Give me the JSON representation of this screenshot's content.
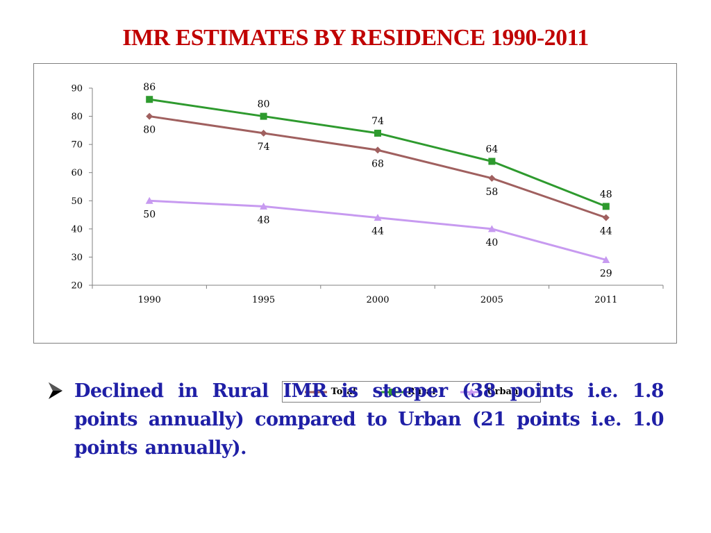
{
  "slide": {
    "title": "IMR ESTIMATES BY RESIDENCE 1990-2011",
    "bullet_text": "Declined in Rural IMR is steeper (38 points i.e. 1.8 points annually) compared to Urban (21  points i.e. 1.0 points annually).",
    "bullet_icon": "arrow-bullet-icon"
  },
  "chart_data": {
    "type": "line",
    "title": "",
    "xlabel": "",
    "ylabel": "",
    "categories": [
      "1990",
      "1995",
      "2000",
      "2005",
      "2011"
    ],
    "ylim": [
      20,
      90
    ],
    "yticks": [
      20,
      30,
      40,
      50,
      60,
      70,
      80,
      90
    ],
    "grid": false,
    "legend_position": "bottom",
    "series": [
      {
        "name": "Total",
        "values": [
          80,
          74,
          68,
          58,
          44
        ],
        "color": "#a0605f",
        "marker": "diamond",
        "label_position": "below"
      },
      {
        "name": "Rural",
        "values": [
          86,
          80,
          74,
          64,
          48
        ],
        "color": "#2e9a2e",
        "marker": "square",
        "label_position": "above"
      },
      {
        "name": "Urban",
        "values": [
          50,
          48,
          44,
          40,
          29
        ],
        "color": "#c79af0",
        "marker": "triangle",
        "label_position": "below"
      }
    ]
  },
  "colors": {
    "title": "#c00000",
    "bullet_text": "#1f1fa6",
    "axis": "#808080"
  }
}
